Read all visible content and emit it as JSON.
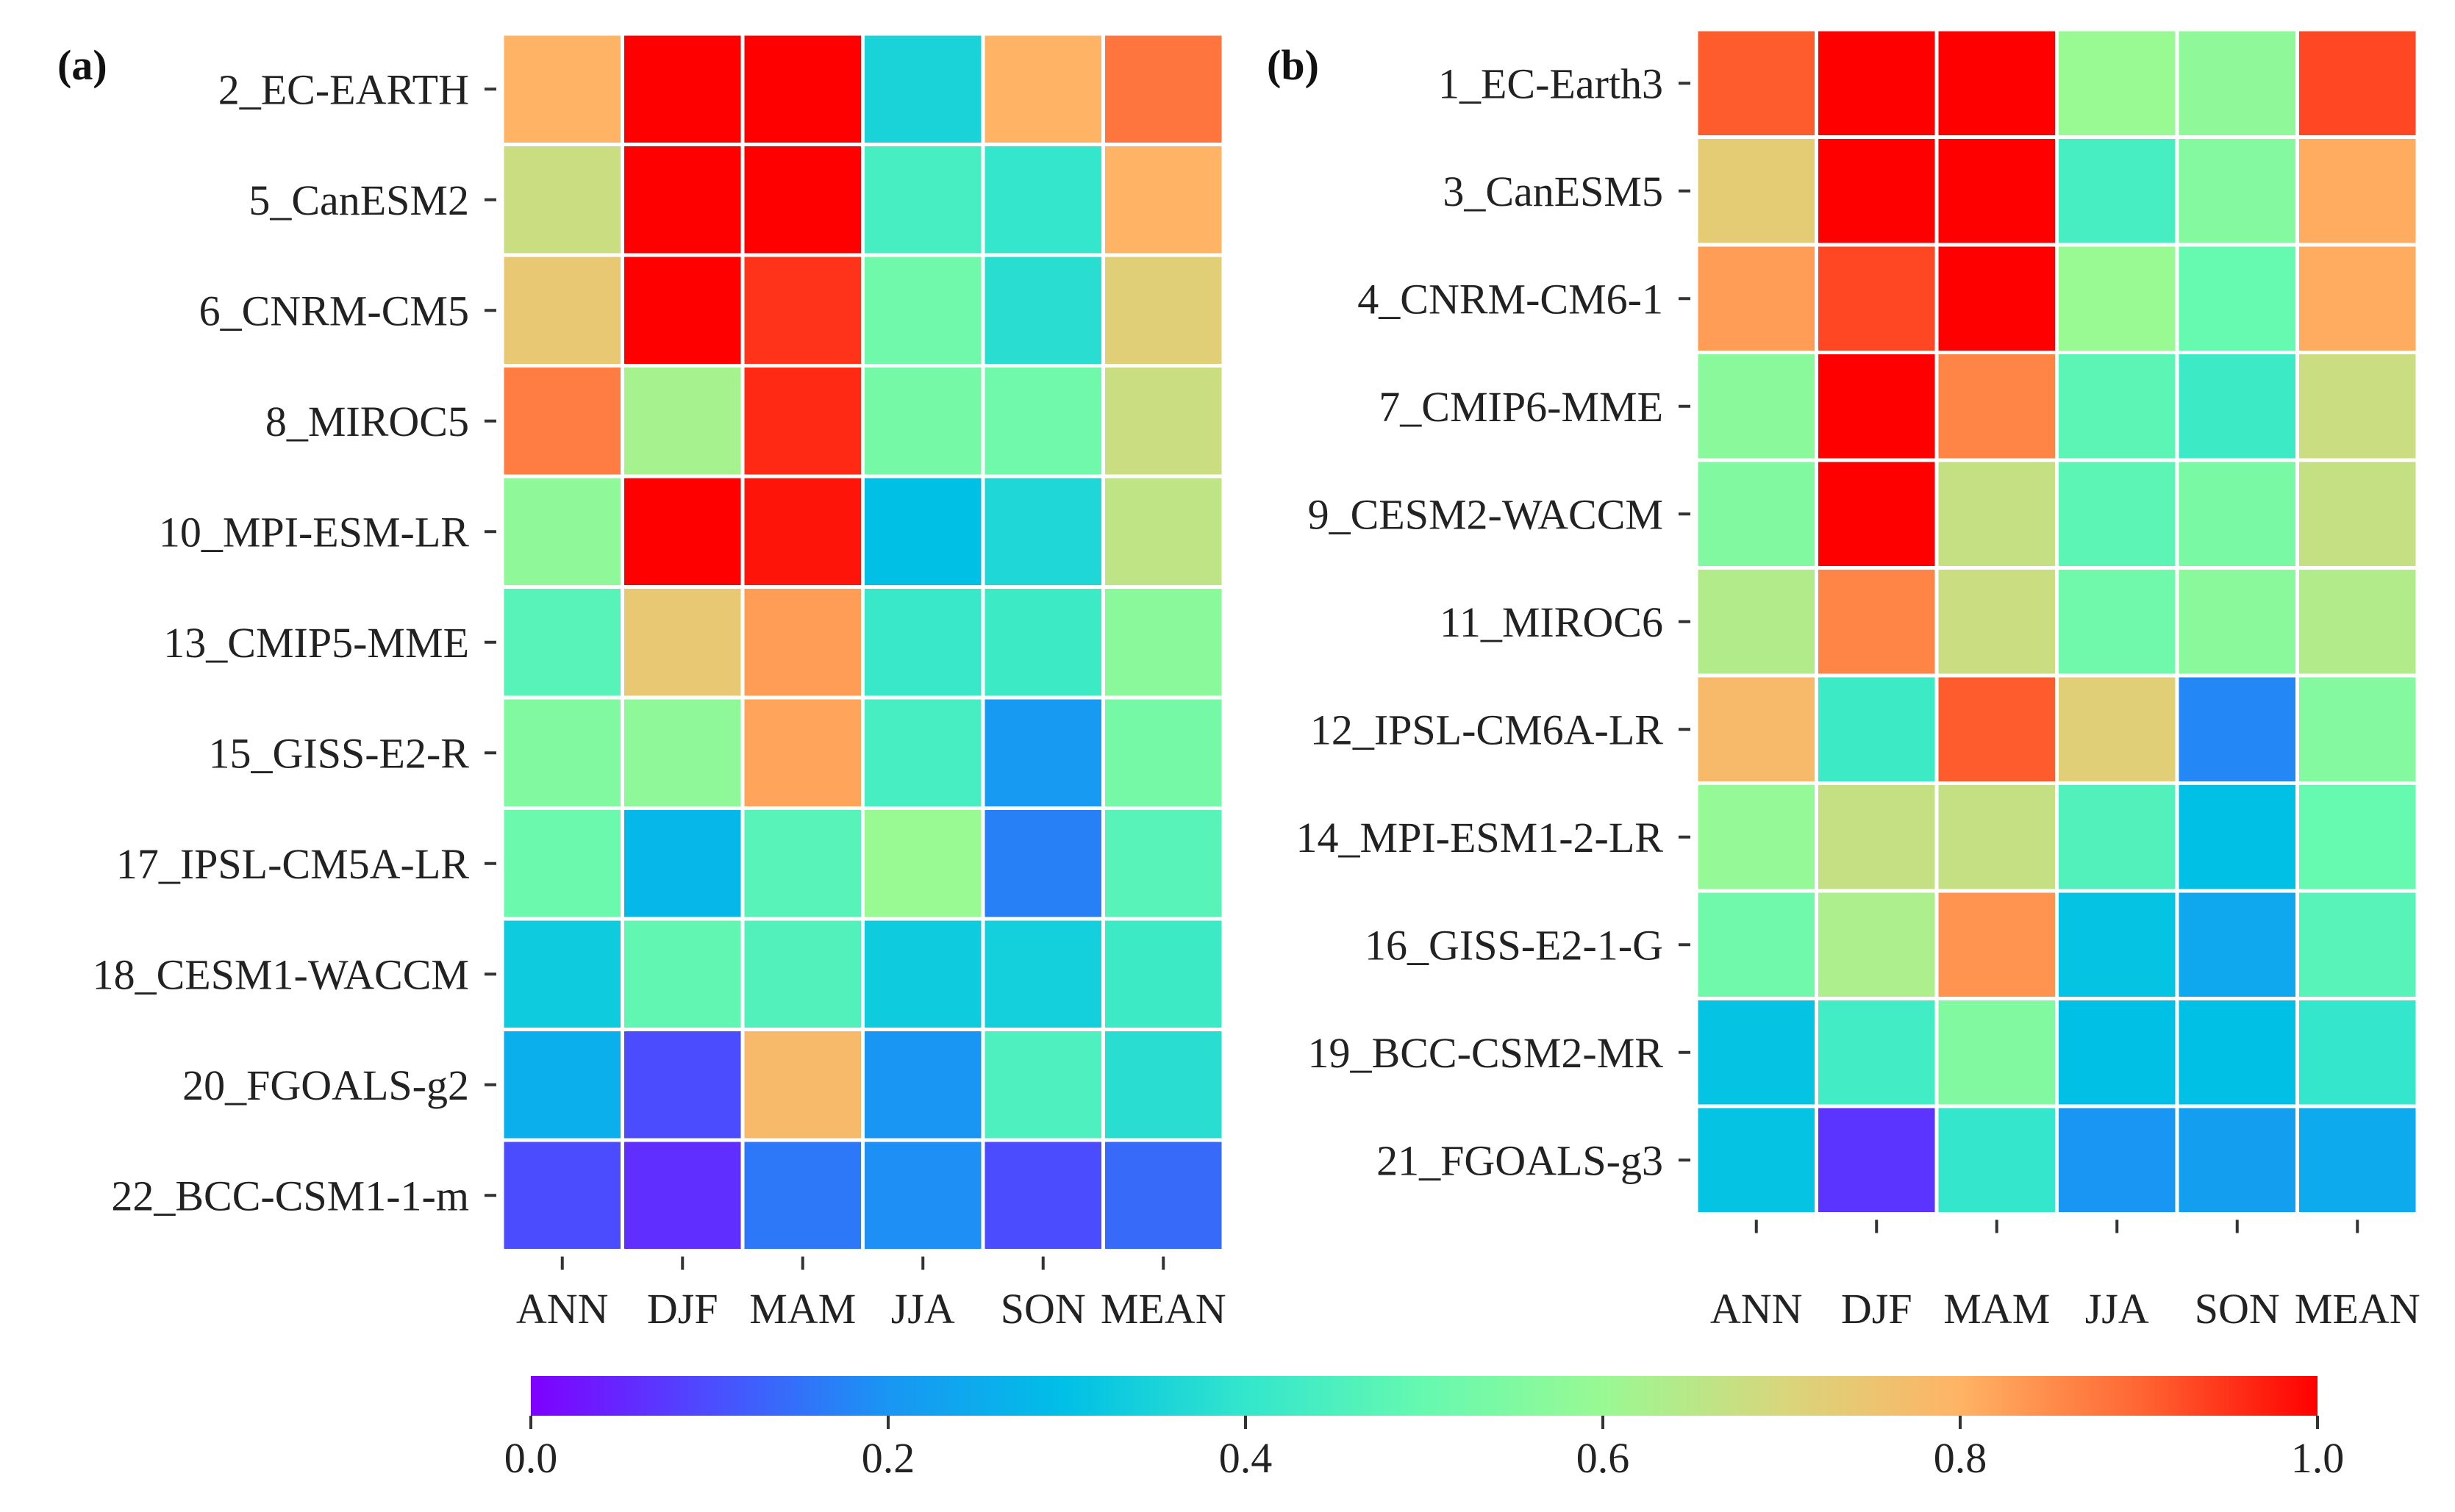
{
  "chart_data": [
    {
      "type": "heatmap",
      "panel_label": "(a)",
      "columns": [
        "ANN",
        "DJF",
        "MAM",
        "JJA",
        "SON",
        "MEAN"
      ],
      "rows": [
        "2_EC-EARTH",
        "5_CanESM2",
        "6_CNRM-CM5",
        "8_MIROC5",
        "10_MPI-ESM-LR",
        "13_CMIP5-MME",
        "15_GISS-E2-R",
        "17_IPSL-CM5A-LR",
        "18_CESM1-WACCM",
        "20_FGOALS-g2",
        "22_BCC-CSM1-1-m"
      ],
      "values": [
        [
          0.8,
          1.0,
          1.0,
          0.35,
          0.8,
          0.88
        ],
        [
          0.68,
          1.0,
          1.0,
          0.44,
          0.4,
          0.8
        ],
        [
          0.74,
          1.0,
          0.95,
          0.52,
          0.38,
          0.72
        ],
        [
          0.87,
          0.62,
          0.96,
          0.53,
          0.52,
          0.68
        ],
        [
          0.58,
          1.0,
          0.98,
          0.3,
          0.36,
          0.66
        ],
        [
          0.47,
          0.74,
          0.83,
          0.41,
          0.42,
          0.57
        ],
        [
          0.55,
          0.58,
          0.82,
          0.44,
          0.21,
          0.53
        ],
        [
          0.51,
          0.28,
          0.47,
          0.6,
          0.17,
          0.47
        ],
        [
          0.33,
          0.49,
          0.46,
          0.33,
          0.34,
          0.42
        ],
        [
          0.26,
          0.1,
          0.78,
          0.2,
          0.45,
          0.38
        ],
        [
          0.1,
          0.06,
          0.16,
          0.19,
          0.1,
          0.14
        ]
      ],
      "colorbar": {
        "min": 0.0,
        "max": 1.0,
        "ticks": [
          "0.0",
          "0.2",
          "0.4",
          "0.6",
          "0.8",
          "1.0"
        ]
      }
    },
    {
      "type": "heatmap",
      "panel_label": "(b)",
      "columns": [
        "ANN",
        "DJF",
        "MAM",
        "JJA",
        "SON",
        "MEAN"
      ],
      "rows": [
        "1_EC-Earth3",
        "3_CanESM5",
        "4_CNRM-CM6-1",
        "7_CMIP6-MME",
        "9_CESM2-WACCM",
        "11_MIROC6",
        "12_IPSL-CM6A-LR",
        "14_MPI-ESM1-2-LR",
        "16_GISS-E2-1-G",
        "19_BCC-CSM2-MR",
        "21_FGOALS-g3"
      ],
      "values": [
        [
          0.91,
          1.0,
          1.0,
          0.6,
          0.58,
          0.93
        ],
        [
          0.73,
          1.0,
          1.0,
          0.44,
          0.56,
          0.81
        ],
        [
          0.83,
          0.93,
          1.0,
          0.6,
          0.5,
          0.81
        ],
        [
          0.57,
          1.0,
          0.86,
          0.48,
          0.42,
          0.68
        ],
        [
          0.55,
          1.0,
          0.67,
          0.48,
          0.54,
          0.67
        ],
        [
          0.64,
          0.86,
          0.68,
          0.52,
          0.57,
          0.64
        ],
        [
          0.78,
          0.42,
          0.91,
          0.72,
          0.18,
          0.56
        ],
        [
          0.59,
          0.67,
          0.67,
          0.46,
          0.3,
          0.5
        ],
        [
          0.52,
          0.63,
          0.84,
          0.31,
          0.24,
          0.47
        ],
        [
          0.31,
          0.43,
          0.55,
          0.3,
          0.3,
          0.4
        ],
        [
          0.31,
          0.07,
          0.4,
          0.2,
          0.22,
          0.25
        ]
      ],
      "colorbar": {
        "min": 0.0,
        "max": 1.0,
        "ticks": [
          "0.0",
          "0.2",
          "0.4",
          "0.6",
          "0.8",
          "1.0"
        ]
      }
    }
  ]
}
